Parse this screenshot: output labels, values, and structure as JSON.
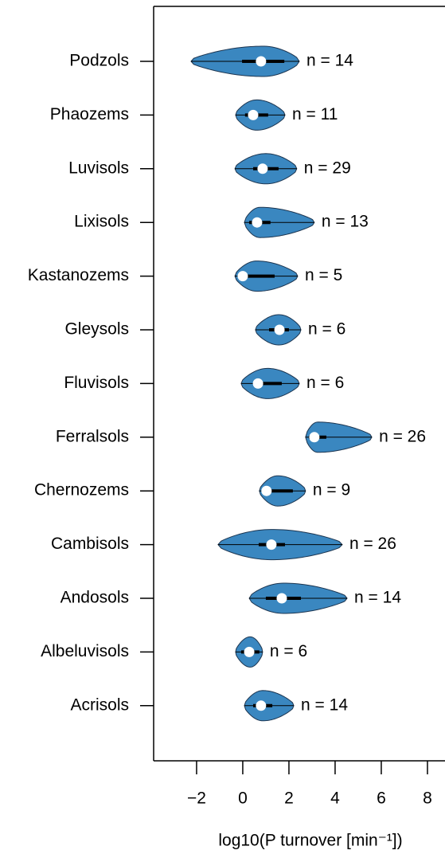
{
  "chart_data": {
    "type": "violin",
    "x_label": "log10(P turnover [min⁻¹])",
    "categories": [
      "Podzols",
      "Phaozems",
      "Luvisols",
      "Lixisols",
      "Kastanozems",
      "Gleysols",
      "Fluvisols",
      "Ferralsols",
      "Chernozems",
      "Cambisols",
      "Andosols",
      "Albeluvisols",
      "Acrisols"
    ],
    "n_labels": [
      "n = 14",
      "n = 11",
      "n = 29",
      "n = 13",
      "n = 5",
      "n = 6",
      "n = 6",
      "n = 26",
      "n = 9",
      "n = 26",
      "n = 14",
      "n = 6",
      "n = 14"
    ],
    "min": [
      -2.24,
      -0.31,
      -0.34,
      0.07,
      -0.34,
      0.55,
      -0.07,
      2.72,
      0.72,
      -1.07,
      0.28,
      -0.31,
      0.07
    ],
    "q1": [
      -0.03,
      0.1,
      0.45,
      0.28,
      -0.17,
      1.14,
      0.45,
      2.86,
      0.86,
      0.69,
      1.0,
      -0.07,
      0.45
    ],
    "median": [
      0.79,
      0.45,
      0.86,
      0.62,
      0.0,
      1.59,
      0.66,
      3.1,
      1.03,
      1.24,
      1.69,
      0.28,
      0.79
    ],
    "q3": [
      1.8,
      1.1,
      1.55,
      1.2,
      1.38,
      2.0,
      1.69,
      3.62,
      2.17,
      1.83,
      2.52,
      0.72,
      1.28
    ],
    "max": [
      2.45,
      1.83,
      2.34,
      3.1,
      2.38,
      2.52,
      2.45,
      5.59,
      2.72,
      4.31,
      4.52,
      0.86,
      2.21
    ],
    "color": "#3a87c0",
    "xlim": [
      -3.86,
      8.76
    ],
    "xticks": [
      {
        "value": -2,
        "label": "−2"
      },
      0,
      2,
      4,
      6,
      8
    ]
  }
}
